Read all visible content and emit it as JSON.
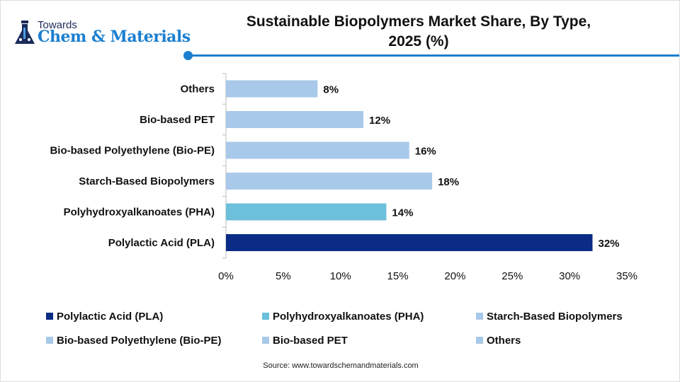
{
  "logo": {
    "top": "Towards",
    "main": "Chem & Materials"
  },
  "chart_data": {
    "type": "bar",
    "orientation": "horizontal",
    "title": "Sustainable Biopolymers Market Share, By Type, 2025 (%)",
    "title_line1": "Sustainable Biopolymers Market Share, By Type,",
    "title_line2": "2025 (%)",
    "categories": [
      "Polylactic Acid (PLA)",
      "Polyhydroxyalkanoates (PHA)",
      "Starch-Based Biopolymers",
      "Bio-based Polyethylene (Bio-PE)",
      "Bio-based PET",
      "Others"
    ],
    "values": [
      32,
      14,
      18,
      16,
      12,
      8
    ],
    "data_labels": [
      "32%",
      "14%",
      "18%",
      "16%",
      "12%",
      "8%"
    ],
    "colors": [
      "#0b2c86",
      "#6cc0dc",
      "#a9c9ea",
      "#a9c9ea",
      "#a9c9ea",
      "#a9c9ea"
    ],
    "xlim": [
      0,
      35
    ],
    "xticks": [
      "0%",
      "5%",
      "10%",
      "15%",
      "20%",
      "25%",
      "30%",
      "35%"
    ],
    "legend_position": "bottom",
    "grid": false
  },
  "source": "Source: www.towardschemandmaterials.com"
}
